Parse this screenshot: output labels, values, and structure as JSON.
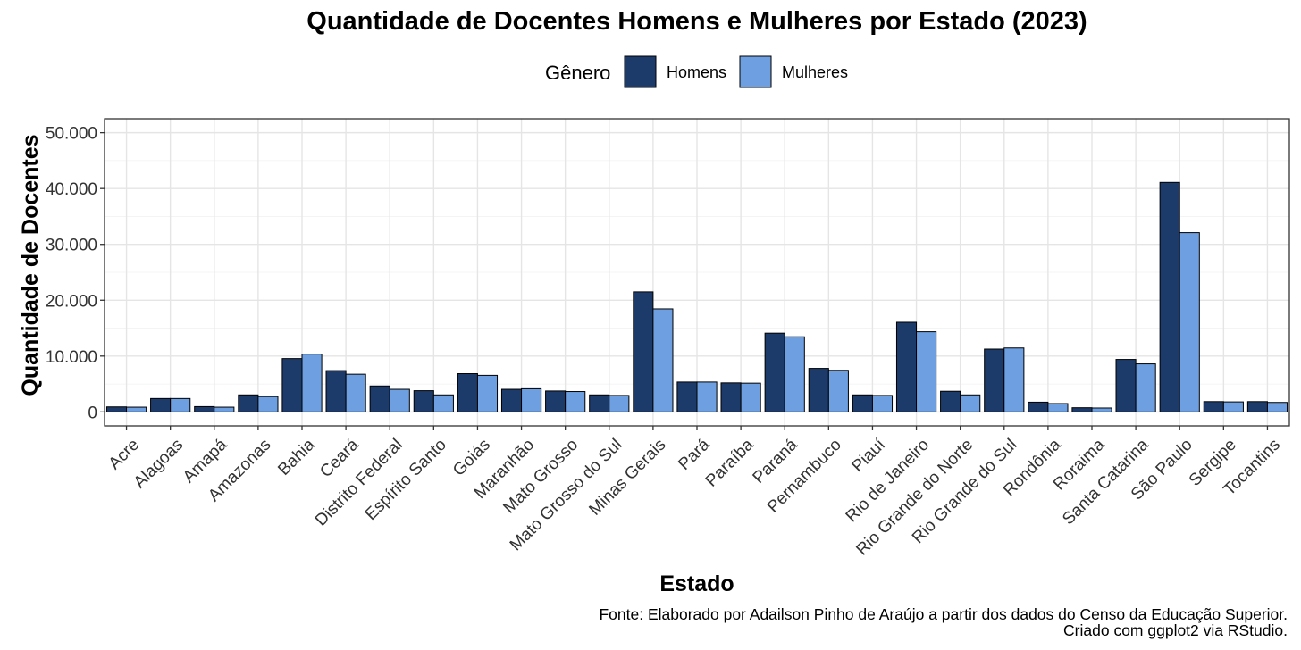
{
  "chart_data": {
    "type": "bar",
    "title": "Quantidade de Docentes Homens e Mulheres por Estado (2023)",
    "xlabel": "Estado",
    "ylabel": "Quantidade de Docentes",
    "ylim": [
      -2500,
      52500
    ],
    "y_ticks": [
      0,
      10000,
      20000,
      30000,
      40000,
      50000
    ],
    "y_tick_labels": [
      "0",
      "10.000",
      "20.000",
      "30.000",
      "40.000",
      "50.000"
    ],
    "grid": true,
    "legend": {
      "title": "Gênero",
      "position": "top"
    },
    "categories": [
      "Acre",
      "Alagoas",
      "Amapá",
      "Amazonas",
      "Bahia",
      "Ceará",
      "Distrito Federal",
      "Espírito Santo",
      "Goiás",
      "Maranhão",
      "Mato Grosso",
      "Mato Grosso do Sul",
      "Minas Gerais",
      "Pará",
      "Paraíba",
      "Paraná",
      "Pernambuco",
      "Piauí",
      "Rio de Janeiro",
      "Rio Grande do Norte",
      "Rio Grande do Sul",
      "Rondônia",
      "Roraima",
      "Santa Catarina",
      "São Paulo",
      "Sergipe",
      "Tocantins"
    ],
    "series": [
      {
        "name": "Homens",
        "color": "#1d3b6a",
        "values": [
          900,
          2400,
          950,
          3050,
          9550,
          7400,
          4650,
          3800,
          6850,
          4050,
          3750,
          3050,
          21500,
          5350,
          5200,
          14100,
          7800,
          3050,
          16050,
          3700,
          11250,
          1750,
          750,
          9400,
          41100,
          1850,
          1850
        ]
      },
      {
        "name": "Mulheres",
        "color": "#6e9fe0",
        "values": [
          850,
          2400,
          850,
          2750,
          10350,
          6750,
          4050,
          3050,
          6550,
          4150,
          3650,
          2950,
          18450,
          5350,
          5150,
          13450,
          7450,
          2950,
          14350,
          3050,
          11450,
          1500,
          700,
          8600,
          32100,
          1800,
          1700
        ]
      }
    ]
  },
  "caption": {
    "line1": "Fonte: Elaborado por Adailson Pinho de Araújo a partir dos dados do Censo da Educação Superior.",
    "line2": "Criado com ggplot2 via RStudio."
  }
}
